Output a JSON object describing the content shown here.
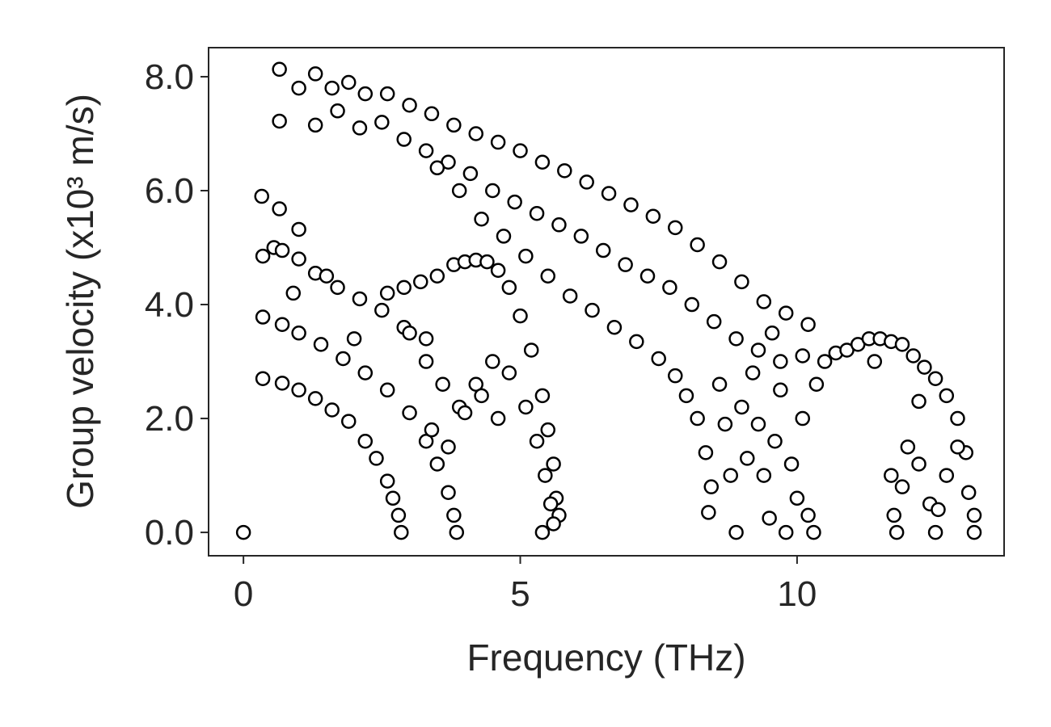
{
  "chart_data": {
    "type": "scatter",
    "xlabel": "Frequency (THz)",
    "ylabel": "Group velocity (x10³ m/s)",
    "x": [
      0.65,
      1.0,
      1.3,
      1.6,
      1.9,
      2.2,
      2.6,
      3.0,
      3.4,
      3.8,
      4.2,
      4.6,
      5.0,
      5.4,
      5.8,
      6.2,
      6.6,
      7.0,
      7.4,
      7.8,
      8.2,
      8.6,
      9.0,
      9.4,
      9.8,
      10.2,
      0.65,
      1.3,
      1.7,
      2.1,
      2.5,
      2.9,
      3.3,
      3.7,
      4.1,
      4.5,
      4.9,
      5.3,
      5.7,
      6.1,
      6.5,
      6.9,
      7.3,
      7.7,
      8.1,
      8.5,
      8.9,
      9.3,
      9.7,
      10.1,
      3.5,
      3.9,
      4.3,
      4.7,
      5.1,
      5.5,
      5.9,
      6.3,
      6.7,
      7.1,
      7.5,
      7.8,
      8.0,
      8.2,
      8.35,
      8.45,
      8.4,
      8.6,
      8.7,
      8.8,
      8.9,
      9.1,
      9.3,
      9.4,
      9.5,
      9.6,
      9.7,
      9.8,
      9.9,
      10.0,
      10.1,
      10.2,
      10.3,
      10.35,
      9.0,
      9.2,
      9.55,
      10.5,
      10.7,
      10.9,
      11.1,
      11.3,
      11.5,
      11.7,
      11.9,
      12.1,
      12.3,
      12.5,
      12.7,
      12.9,
      13.05,
      13.2,
      11.7,
      11.75,
      11.8,
      11.9,
      12.0,
      12.2,
      12.4,
      12.5,
      12.55,
      12.7,
      12.9,
      13.1,
      13.2,
      11.4,
      12.2,
      0.35,
      0.7,
      1.0,
      1.3,
      1.6,
      1.9,
      2.2,
      2.4,
      2.6,
      2.7,
      2.8,
      2.85,
      0.35,
      0.7,
      1.0,
      1.4,
      1.8,
      2.2,
      2.6,
      3.0,
      3.3,
      3.5,
      3.7,
      3.8,
      3.85,
      0.35,
      0.55,
      0.7,
      1.0,
      1.3,
      1.7,
      2.1,
      2.5,
      2.9,
      3.3,
      0.9,
      1.5,
      2.0,
      0.33,
      0.65,
      1.0,
      0.0,
      2.6,
      2.9,
      3.2,
      3.5,
      3.8,
      4.0,
      4.2,
      4.4,
      4.6,
      4.8,
      5.0,
      5.2,
      5.4,
      5.5,
      5.6,
      5.65,
      5.7,
      3.0,
      3.3,
      3.6,
      3.9,
      4.2,
      4.5,
      4.8,
      5.1,
      5.3,
      5.45,
      5.55,
      5.4,
      5.6,
      3.4,
      3.7,
      4.0,
      4.3,
      4.6
    ],
    "values": [
      8.13,
      7.8,
      8.05,
      7.8,
      7.9,
      7.7,
      7.7,
      7.5,
      7.35,
      7.15,
      7.0,
      6.85,
      6.7,
      6.5,
      6.35,
      6.15,
      5.95,
      5.75,
      5.55,
      5.35,
      5.05,
      4.75,
      4.4,
      4.05,
      3.85,
      3.65,
      7.22,
      7.15,
      7.4,
      7.1,
      7.2,
      6.9,
      6.7,
      6.5,
      6.3,
      6.0,
      5.8,
      5.6,
      5.4,
      5.2,
      4.95,
      4.7,
      4.5,
      4.3,
      4.0,
      3.7,
      3.4,
      3.2,
      3.0,
      3.1,
      6.4,
      6.0,
      5.5,
      5.2,
      4.85,
      4.5,
      4.15,
      3.9,
      3.6,
      3.35,
      3.05,
      2.75,
      2.4,
      2.0,
      1.4,
      0.8,
      0.35,
      2.6,
      1.9,
      1.0,
      0.0,
      1.3,
      1.9,
      1.0,
      0.25,
      1.6,
      2.5,
      0.0,
      1.2,
      0.6,
      2.0,
      0.3,
      0.0,
      2.6,
      2.2,
      2.8,
      3.5,
      3.0,
      3.15,
      3.2,
      3.3,
      3.4,
      3.4,
      3.35,
      3.3,
      3.1,
      2.9,
      2.7,
      2.4,
      2.0,
      1.4,
      0.3,
      1.0,
      0.3,
      0.0,
      0.8,
      1.5,
      1.2,
      0.5,
      0.0,
      0.4,
      1.0,
      1.5,
      0.7,
      0.0,
      3.0,
      2.3,
      2.7,
      2.62,
      2.5,
      2.35,
      2.15,
      1.95,
      1.6,
      1.3,
      0.9,
      0.6,
      0.3,
      0.0,
      3.78,
      3.65,
      3.5,
      3.3,
      3.05,
      2.8,
      2.5,
      2.1,
      1.6,
      1.2,
      0.7,
      0.3,
      0.0,
      4.85,
      5.0,
      4.95,
      4.8,
      4.55,
      4.3,
      4.1,
      3.9,
      3.6,
      3.4,
      4.2,
      4.5,
      3.4,
      5.9,
      5.68,
      5.32,
      0.0,
      4.2,
      4.3,
      4.4,
      4.5,
      4.7,
      4.75,
      4.78,
      4.75,
      4.6,
      4.3,
      3.8,
      3.2,
      2.4,
      1.8,
      1.2,
      0.6,
      0.3,
      3.5,
      3.0,
      2.6,
      2.2,
      2.6,
      3.0,
      2.8,
      2.2,
      1.6,
      1.0,
      0.5,
      0.0,
      0.15,
      1.8,
      1.5,
      2.1,
      2.4,
      2.0
    ],
    "marker_fill": "#ffffff",
    "marker_edge": "#000000",
    "xlim": [
      -0.63,
      13.74
    ],
    "ylim": [
      -0.41,
      8.51
    ],
    "xticks": [
      0,
      5,
      10
    ],
    "yticks": [
      {
        "value": 0,
        "label": "0.0"
      },
      {
        "value": 2,
        "label": "2.0"
      },
      {
        "value": 4,
        "label": "4.0"
      },
      {
        "value": 6,
        "label": "6.0"
      },
      {
        "value": 8,
        "label": "8.0"
      }
    ],
    "grid": false
  }
}
